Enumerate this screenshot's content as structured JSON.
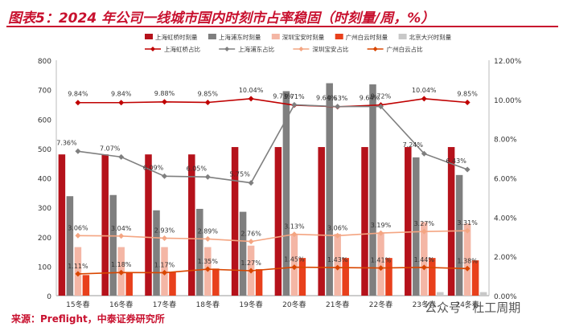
{
  "title": "图表5：2024 年公司一线城市国内时刻市占率稳固（时刻量/周，%）",
  "source": "来源：Preflight，中泰证券研究所",
  "watermark": "公众号 · 杜工周期",
  "colors": {
    "title": "#c8102e",
    "sh_hongqiao_bar": "#b5121b",
    "sh_pudong_bar": "#7f7f7f",
    "sz_baoan_bar": "#f4b6a5",
    "gz_baiyun_bar": "#e8401c",
    "bj_daxing_bar": "#c8c8c8",
    "sh_hongqiao_line": "#c00000",
    "sh_pudong_line": "#7f7f7f",
    "sz_baoan_line": "#f4a582",
    "gz_baiyun_line": "#d94600"
  },
  "chart_data": {
    "type": "bar",
    "categories": [
      "15冬春",
      "16冬春",
      "17冬春",
      "18冬春",
      "19冬春",
      "20冬春",
      "21冬春",
      "22冬春",
      "23冬春",
      "24冬春"
    ],
    "ylim_left": [
      0,
      800
    ],
    "yticks_left": [
      "0",
      "100",
      "200",
      "300",
      "400",
      "500",
      "600",
      "700",
      "800"
    ],
    "ylim_right": [
      0,
      12
    ],
    "yticks_right": [
      "0.00%",
      "2.00%",
      "4.00%",
      "6.00%",
      "8.00%",
      "10.00%",
      "12.00%"
    ],
    "legend_position": "top",
    "bar_series": [
      {
        "name": "上海虹桥时刻量",
        "color": "#b5121b",
        "values": [
          480,
          480,
          480,
          480,
          505,
          505,
          505,
          505,
          505,
          505
        ]
      },
      {
        "name": "上海浦东时刻量",
        "color": "#7f7f7f",
        "values": [
          338,
          342,
          290,
          295,
          285,
          695,
          722,
          718,
          470,
          410
        ]
      },
      {
        "name": "深圳宝安时刻量",
        "color": "#f4b6a5",
        "values": [
          165,
          165,
          165,
          165,
          170,
          210,
          210,
          215,
          250,
          245
        ]
      },
      {
        "name": "广州白云时刻量",
        "color": "#e8401c",
        "values": [
          70,
          80,
          80,
          92,
          90,
          128,
          128,
          128,
          128,
          120
        ]
      },
      {
        "name": "北京大兴时刻量",
        "color": "#c8c8c8",
        "values": [
          0,
          0,
          0,
          0,
          0,
          0,
          0,
          0,
          12,
          12
        ]
      }
    ],
    "line_series": [
      {
        "name": "上海虹桥占比",
        "color": "#c00000",
        "values": [
          9.84,
          9.84,
          9.88,
          9.85,
          10.04,
          9.71,
          9.63,
          9.72,
          10.04,
          9.85
        ],
        "labels": [
          "9.84%",
          "9.84%",
          "9.88%",
          "9.85%",
          "10.04%",
          "9.71%",
          "9.63%",
          "9.72%",
          "10.04%",
          "9.85%"
        ]
      },
      {
        "name": "上海浦东占比",
        "color": "#7f7f7f",
        "values": [
          7.36,
          7.07,
          6.09,
          6.05,
          5.75,
          9.73,
          9.64,
          9.64,
          7.24,
          6.43
        ],
        "labels": [
          "7.36%",
          "7.07%",
          "6.09%",
          "6.05%",
          "5.75%",
          "9.73%",
          "9.64%",
          "9.64%",
          "7.24%",
          "6.43%"
        ]
      },
      {
        "name": "深圳宝安占比",
        "color": "#f4a582",
        "values": [
          3.06,
          3.04,
          2.93,
          2.89,
          2.76,
          3.13,
          3.06,
          3.19,
          3.27,
          3.31
        ],
        "labels": [
          "3.06%",
          "3.04%",
          "2.93%",
          "2.89%",
          "2.76%",
          "3.13%",
          "3.06%",
          "3.19%",
          "3.27%",
          "3.31%"
        ]
      },
      {
        "name": "广州白云占比",
        "color": "#d94600",
        "values": [
          1.11,
          1.18,
          1.17,
          1.35,
          1.27,
          1.45,
          1.43,
          1.41,
          1.44,
          1.38
        ],
        "labels": [
          "1.11%",
          "1.18%",
          "1.17%",
          "1.35%",
          "1.27%",
          "1.45%",
          "1.43%",
          "1.41%",
          "1.44%",
          "1.38%"
        ]
      }
    ]
  }
}
